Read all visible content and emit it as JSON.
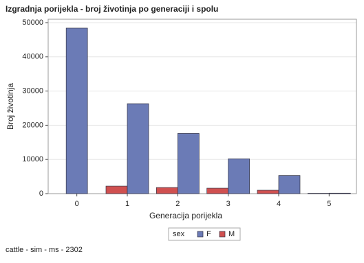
{
  "chart_data": {
    "type": "bar",
    "title": "Izgradnja porijekla - broj životinja po generaciji i spolu",
    "footnote": "cattle - sim - ms - 2302",
    "x_label": "Generacija porijekla",
    "y_label": "Broj životinja",
    "categories": [
      "0",
      "1",
      "2",
      "3",
      "4",
      "5"
    ],
    "series": [
      {
        "name": "F",
        "color": "#6b7bb6",
        "values": [
          48400,
          26300,
          17600,
          10200,
          5300,
          150
        ]
      },
      {
        "name": "M",
        "color": "#d05050",
        "values": [
          null,
          2200,
          1800,
          1600,
          1000,
          100
        ]
      }
    ],
    "legend_title": "sex",
    "legend": "bottom",
    "ylim": [
      0,
      51000
    ],
    "yticks": [
      0,
      10000,
      20000,
      30000,
      40000,
      50000
    ],
    "grid": true
  }
}
